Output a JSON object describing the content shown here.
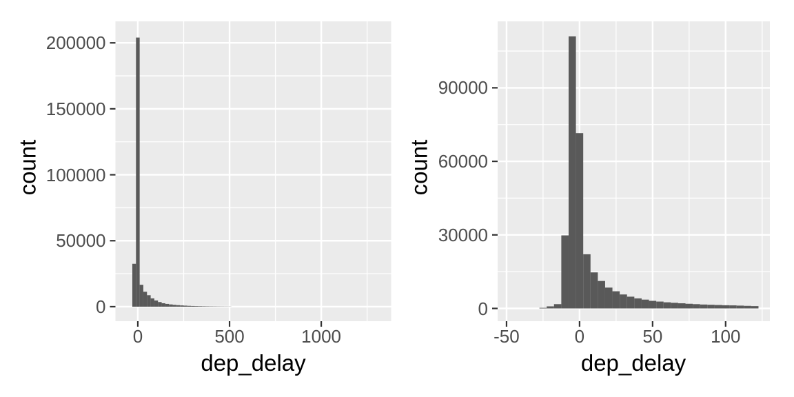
{
  "chart_data": [
    {
      "id": "full-range-histogram",
      "type": "bar",
      "subtype": "histogram",
      "title": "",
      "xlabel": "dep_delay",
      "ylabel": "count",
      "binwidth": 20,
      "bin_centers": [
        -20,
        0,
        20,
        40,
        60,
        80,
        100,
        120,
        140,
        160,
        180,
        200,
        220,
        240,
        260,
        280,
        300,
        320,
        340,
        360,
        380,
        400,
        420,
        440,
        460,
        480,
        500
      ],
      "counts": [
        32500,
        204000,
        16600,
        11300,
        8700,
        6300,
        4700,
        3500,
        2600,
        2100,
        1700,
        1400,
        1150,
        950,
        780,
        640,
        530,
        440,
        370,
        310,
        260,
        220,
        190,
        160,
        140,
        120,
        100
      ],
      "xlim": [
        -122,
        1381
      ],
      "ylim": [
        -11000,
        216300
      ],
      "x_major_ticks": [
        0,
        500,
        1000
      ],
      "x_tick_labels": [
        "0",
        "500",
        "1000"
      ],
      "x_minor_ticks": [
        250,
        750,
        1250
      ],
      "y_major_ticks": [
        0,
        50000,
        100000,
        150000,
        200000
      ],
      "y_tick_labels": [
        "0",
        "50000",
        "100000",
        "150000",
        "200000"
      ],
      "y_minor_ticks": [
        25000,
        75000,
        125000,
        175000
      ],
      "grid": "major+minor",
      "legend": "none"
    },
    {
      "id": "zoomed-histogram",
      "type": "bar",
      "subtype": "histogram",
      "title": "",
      "xlabel": "dep_delay",
      "ylabel": "count",
      "binwidth": 5,
      "bin_centers": [
        -25,
        -20,
        -15,
        -10,
        -5,
        0,
        5,
        10,
        15,
        20,
        25,
        30,
        35,
        40,
        45,
        50,
        55,
        60,
        65,
        70,
        75,
        80,
        85,
        90,
        95,
        100,
        105,
        110,
        115,
        120
      ],
      "counts": [
        250,
        850,
        1750,
        29800,
        111000,
        71500,
        22100,
        14700,
        11200,
        8500,
        7000,
        5700,
        4800,
        4100,
        3600,
        3100,
        2800,
        2500,
        2300,
        2100,
        1900,
        1750,
        1600,
        1500,
        1400,
        1300,
        1250,
        1150,
        1050,
        950
      ],
      "xlim": [
        -56.1,
        130.3
      ],
      "ylim": [
        -5200,
        117100
      ],
      "x_major_ticks": [
        -50,
        0,
        50,
        100
      ],
      "x_tick_labels": [
        "-50",
        "0",
        "50",
        "100"
      ],
      "x_minor_ticks": [
        -25,
        25,
        75,
        125
      ],
      "y_major_ticks": [
        0,
        30000,
        60000,
        90000
      ],
      "y_tick_labels": [
        "0",
        "30000",
        "60000",
        "90000"
      ],
      "y_minor_ticks": [
        15000,
        45000,
        75000,
        105000
      ],
      "grid": "major+minor",
      "legend": "none"
    }
  ],
  "colors": {
    "bar": "#595959",
    "panel_background": "#EBEBEB",
    "gridline": "#FFFFFF",
    "tick_label": "#4D4D4D",
    "axis_title": "#000000",
    "tick_mark": "#333333",
    "page_background": "#FFFFFF"
  }
}
